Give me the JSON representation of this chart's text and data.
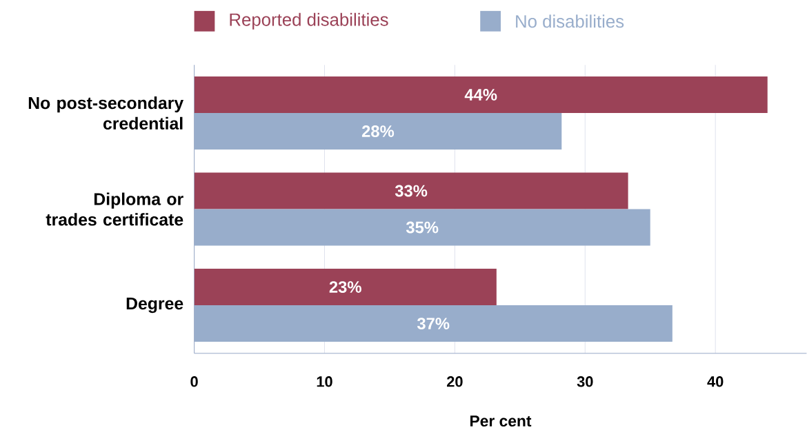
{
  "chart_data": {
    "type": "bar",
    "orientation": "horizontal",
    "xlabel": "Per cent",
    "categories": [
      "No post-secondary credential",
      "Diploma or trades certificate",
      "Degree"
    ],
    "series": [
      {
        "name": "Reported disabilities",
        "color": "#9b4257",
        "values": [
          44,
          33.3,
          23.2
        ],
        "value_labels": [
          "44%",
          "33%",
          "23%"
        ]
      },
      {
        "name": "No disabilities",
        "color": "#98adcb",
        "values": [
          28.2,
          35,
          36.7
        ],
        "value_labels": [
          "28%",
          "35%",
          "37%"
        ]
      }
    ],
    "xlim": [
      0,
      47
    ],
    "xticks": [
      0,
      10,
      20,
      30,
      40
    ],
    "grid": "x",
    "legend": "top"
  }
}
